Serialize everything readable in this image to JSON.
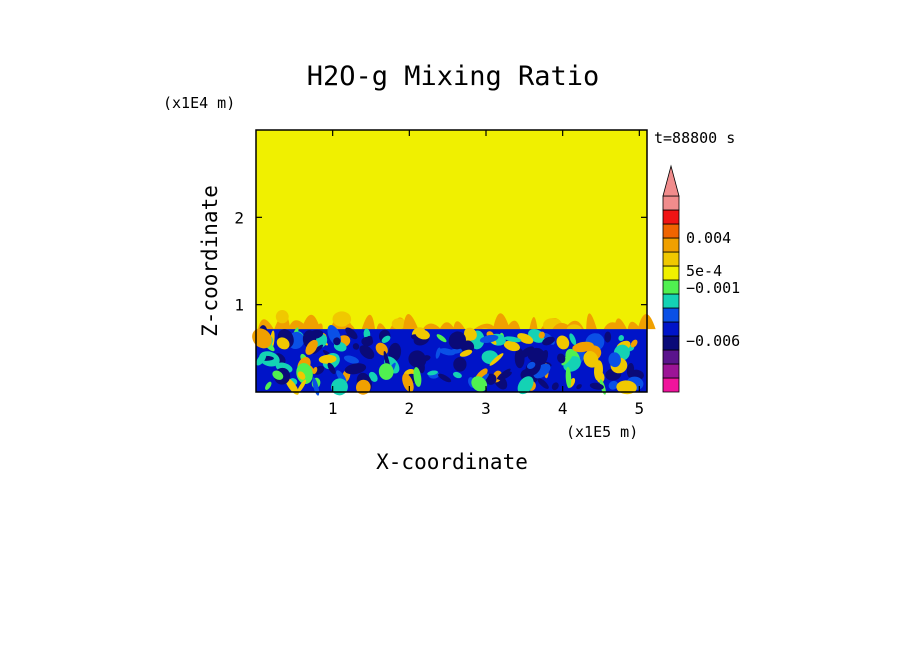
{
  "chart_data": {
    "type": "heatmap",
    "title": "H2O-g Mixing Ratio",
    "xlabel": "X-coordinate",
    "ylabel": "Z-coordinate",
    "x_scale_label": "(x1E5 m)",
    "y_scale_label": "(x1E4 m)",
    "time_label": "t=88800 s",
    "x_ticks": [
      "1",
      "2",
      "3",
      "4",
      "5"
    ],
    "x_tick_values": [
      1,
      2,
      3,
      4,
      5
    ],
    "y_ticks": [
      "1",
      "2"
    ],
    "y_tick_values": [
      1,
      2
    ],
    "xlim": [
      0,
      5.1
    ],
    "ylim": [
      0,
      3.0
    ],
    "colorbar": {
      "labels": [
        "0.004",
        "5e-4",
        "−0.001",
        "−0.006"
      ],
      "colors": [
        "#f0149c",
        "#9c1496",
        "#5a148c",
        "#0a0a78",
        "#0014c8",
        "#0a50e6",
        "#14d2b4",
        "#50f050",
        "#f0f000",
        "#f0c800",
        "#f0a000",
        "#f06400",
        "#f01414",
        "#f08c8c"
      ],
      "arrow_color": "#f08c8c"
    },
    "regions": {
      "upper_color": "#f0f000",
      "boundary_z": 0.72,
      "mixed_top_z": 1.02,
      "lower_color": "#0014c8"
    }
  }
}
